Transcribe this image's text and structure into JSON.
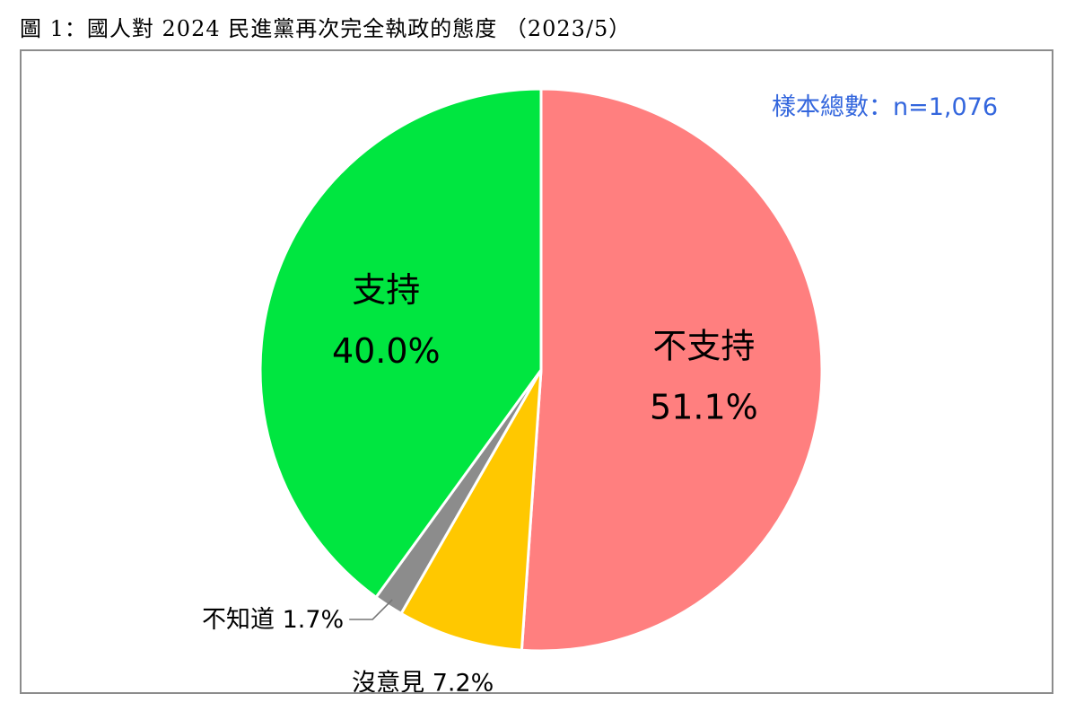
{
  "figure": {
    "title": "圖 1：國人對 2024 民進黨再次完全執政的態度 （2023/5）"
  },
  "sample_note": "樣本總數：n=1,076",
  "colors": {
    "sample_note": "#3366dd",
    "not_support": "#ff7f7f",
    "no_opinion": "#ffc800",
    "dont_know": "#8c8c8c",
    "support": "#00e640"
  },
  "chart_data": {
    "type": "pie",
    "title": "",
    "start_angle_deg": 0,
    "direction": "clockwise",
    "slices": [
      {
        "label": "不支持",
        "value": 51.1,
        "value_label": "51.1%",
        "color": "#ff7f7f",
        "label_placement": "inside"
      },
      {
        "label": "沒意見",
        "value": 7.2,
        "value_label": "7.2%",
        "color": "#ffc800",
        "label_placement": "outside"
      },
      {
        "label": "不知道",
        "value": 1.7,
        "value_label": "1.7%",
        "color": "#8c8c8c",
        "label_placement": "outside-leader"
      },
      {
        "label": "支持",
        "value": 40.0,
        "value_label": "40.0%",
        "color": "#00e640",
        "label_placement": "inside"
      }
    ]
  }
}
